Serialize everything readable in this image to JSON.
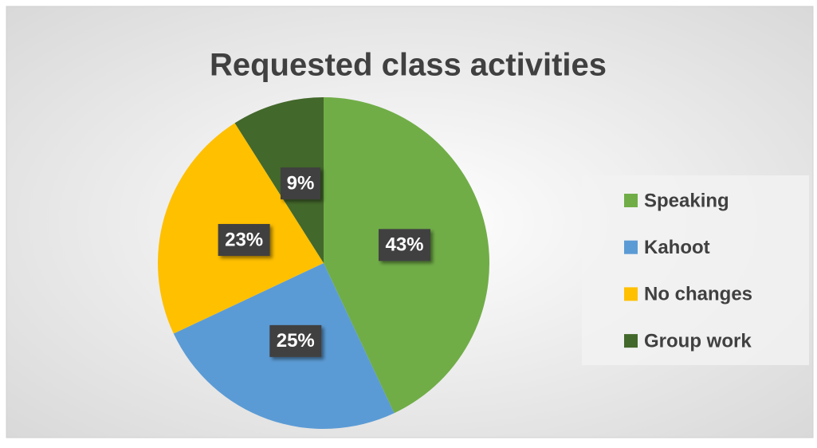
{
  "chart_data": {
    "type": "pie",
    "title": "Requested class activities",
    "categories": [
      "Speaking",
      "Kahoot",
      "No changes",
      "Group work"
    ],
    "values": [
      43,
      25,
      23,
      9
    ],
    "value_labels": [
      "43%",
      "25%",
      "23%",
      "9%"
    ],
    "colors": [
      "#70ad47",
      "#5b9bd5",
      "#ffc000",
      "#43682b"
    ],
    "legend": "right"
  }
}
